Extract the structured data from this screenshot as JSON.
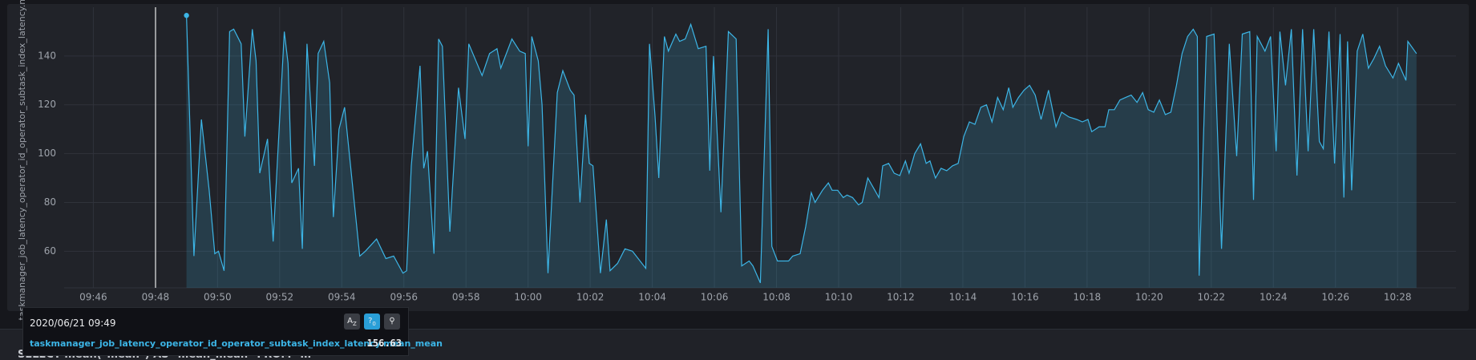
{
  "chart_data": {
    "type": "line",
    "ylabel": "taskmanager_job_latency_operator_id_operator_subtask_index_latency.m...",
    "series": [
      {
        "name": "taskmanager_job_latency_operator_id_operator_subtask_index_latency.mean_mean",
        "color": "#3cb5e6",
        "x": [
          589.0,
          589.24,
          589.48,
          589.73,
          589.91,
          590.03,
          590.21,
          590.39,
          590.52,
          590.76,
          590.88,
          591.12,
          591.24,
          591.36,
          591.61,
          591.79,
          592.15,
          592.27,
          592.39,
          592.61,
          592.73,
          592.88,
          593.12,
          593.24,
          593.42,
          593.61,
          593.73,
          593.91,
          594.09,
          594.58,
          594.76,
          595.12,
          595.42,
          595.67,
          595.97,
          596.09,
          596.24,
          596.52,
          596.64,
          596.76,
          596.97,
          597.12,
          597.24,
          597.48,
          597.76,
          597.97,
          598.09,
          598.52,
          598.76,
          599.0,
          599.12,
          599.48,
          599.73,
          599.91,
          600.0,
          600.12,
          600.33,
          600.45,
          600.64,
          600.94,
          601.12,
          601.36,
          601.48,
          601.67,
          601.85,
          601.97,
          602.09,
          602.33,
          602.52,
          602.64,
          602.88,
          603.12,
          603.36,
          603.79,
          603.91,
          604.09,
          604.21,
          604.39,
          604.52,
          604.76,
          604.88,
          605.06,
          605.24,
          605.48,
          605.73,
          605.85,
          605.97,
          606.21,
          606.45,
          606.7,
          606.88,
          607.12,
          607.24,
          607.48,
          607.73,
          607.85,
          608.03,
          608.39,
          608.52,
          608.76,
          608.94,
          609.12,
          609.24,
          609.48,
          609.67,
          609.79,
          609.97,
          610.15,
          610.27,
          610.45,
          610.64,
          610.76,
          610.94,
          611.12,
          611.3,
          611.42,
          611.61,
          611.79,
          611.97,
          612.15,
          612.27,
          612.45,
          612.64,
          612.82,
          612.94,
          613.12,
          613.3,
          613.48,
          613.67,
          613.85,
          614.03,
          614.21,
          614.39,
          614.58,
          614.76,
          614.94,
          615.12,
          615.3,
          615.48,
          615.61,
          615.79,
          615.97,
          616.15,
          616.33,
          616.52,
          616.76,
          617.0,
          617.18,
          617.42,
          617.67,
          617.85,
          618.03,
          618.15,
          618.39,
          618.58,
          618.7,
          618.88,
          619.06,
          619.24,
          619.42,
          619.61,
          619.79,
          619.97,
          620.15,
          620.33,
          620.52,
          620.7,
          620.88,
          621.06,
          621.24,
          621.42,
          621.55,
          621.61,
          621.85,
          622.09,
          622.33,
          622.58,
          622.82,
          623.0,
          623.24,
          623.36,
          623.48,
          623.73,
          623.91,
          624.09,
          624.21,
          624.39,
          624.58,
          624.76,
          624.94,
          625.12,
          625.3,
          625.48,
          625.61,
          625.79,
          625.97,
          626.15,
          626.27,
          626.39,
          626.52,
          626.7,
          626.88,
          627.06,
          627.24,
          627.42,
          627.61,
          627.85,
          628.03,
          628.27,
          628.33,
          628.61
        ],
        "values": [
          156.63,
          58,
          114,
          85,
          59,
          60,
          52,
          150,
          151,
          145,
          107,
          151,
          138,
          92,
          106,
          64,
          150,
          137,
          88,
          94,
          61,
          145,
          95,
          141,
          146,
          129,
          74,
          110,
          119,
          58,
          60,
          65,
          57,
          58,
          51,
          52,
          95,
          136,
          94,
          101,
          59,
          147,
          144,
          68,
          127,
          106,
          145,
          132,
          141,
          143,
          135,
          147,
          142,
          141,
          103,
          148,
          138,
          120,
          51,
          125,
          134,
          126,
          124,
          80,
          116,
          96,
          95,
          51,
          73,
          52,
          55,
          61,
          60,
          53,
          145,
          115,
          90,
          148,
          142,
          149,
          146,
          147,
          153,
          143,
          144,
          93,
          140,
          76,
          150,
          147,
          54,
          56,
          54,
          47,
          151,
          62,
          56,
          56,
          58,
          59,
          70,
          84,
          80,
          85,
          88,
          85,
          85,
          82,
          83,
          82,
          79,
          80,
          90,
          86,
          82,
          95,
          96,
          92,
          91,
          97,
          92,
          100,
          104,
          96,
          97,
          90,
          94,
          93,
          95,
          96,
          107,
          113,
          112,
          119,
          120,
          113,
          123,
          118,
          127,
          119,
          123,
          126,
          128,
          124,
          114,
          126,
          111,
          117,
          115,
          114,
          113,
          114,
          109,
          111,
          111,
          118,
          118,
          122,
          123,
          124,
          121,
          125,
          118,
          117,
          122,
          116,
          117,
          128,
          141,
          148,
          151,
          148,
          50,
          148,
          149,
          61,
          145,
          99,
          149,
          150,
          81,
          148,
          142,
          148,
          101,
          150,
          128,
          151,
          91,
          151,
          101,
          151,
          105,
          102,
          150,
          96,
          149,
          82,
          146,
          85,
          142,
          149,
          135,
          139,
          144,
          136,
          131,
          137,
          130,
          146,
          141
        ]
      }
    ],
    "xlim": [
      585.06,
      629.88
    ],
    "xticks": [
      {
        "value": 586,
        "label": "09:46"
      },
      {
        "value": 588,
        "label": "09:48"
      },
      {
        "value": 590,
        "label": "09:50"
      },
      {
        "value": 592,
        "label": "09:52"
      },
      {
        "value": 594,
        "label": "09:54"
      },
      {
        "value": 596,
        "label": "09:56"
      },
      {
        "value": 598,
        "label": "09:58"
      },
      {
        "value": 600,
        "label": "10:00"
      },
      {
        "value": 602,
        "label": "10:02"
      },
      {
        "value": 604,
        "label": "10:04"
      },
      {
        "value": 606,
        "label": "10:06"
      },
      {
        "value": 608,
        "label": "10:08"
      },
      {
        "value": 610,
        "label": "10:10"
      },
      {
        "value": 612,
        "label": "10:12"
      },
      {
        "value": 614,
        "label": "10:14"
      },
      {
        "value": 616,
        "label": "10:16"
      },
      {
        "value": 618,
        "label": "10:18"
      },
      {
        "value": 620,
        "label": "10:20"
      },
      {
        "value": 622,
        "label": "10:22"
      },
      {
        "value": 624,
        "label": "10:24"
      },
      {
        "value": 626,
        "label": "10:26"
      },
      {
        "value": 628,
        "label": "10:28"
      }
    ],
    "ylim": [
      45,
      160
    ],
    "yticks": [
      60,
      80,
      100,
      120,
      140
    ],
    "grid": true
  },
  "tooltip": {
    "time": "2020/06/21 09:49"
  },
  "query": "SELECT mean(\"mean\") AS \"mean_mean\" FROM \"m"
}
